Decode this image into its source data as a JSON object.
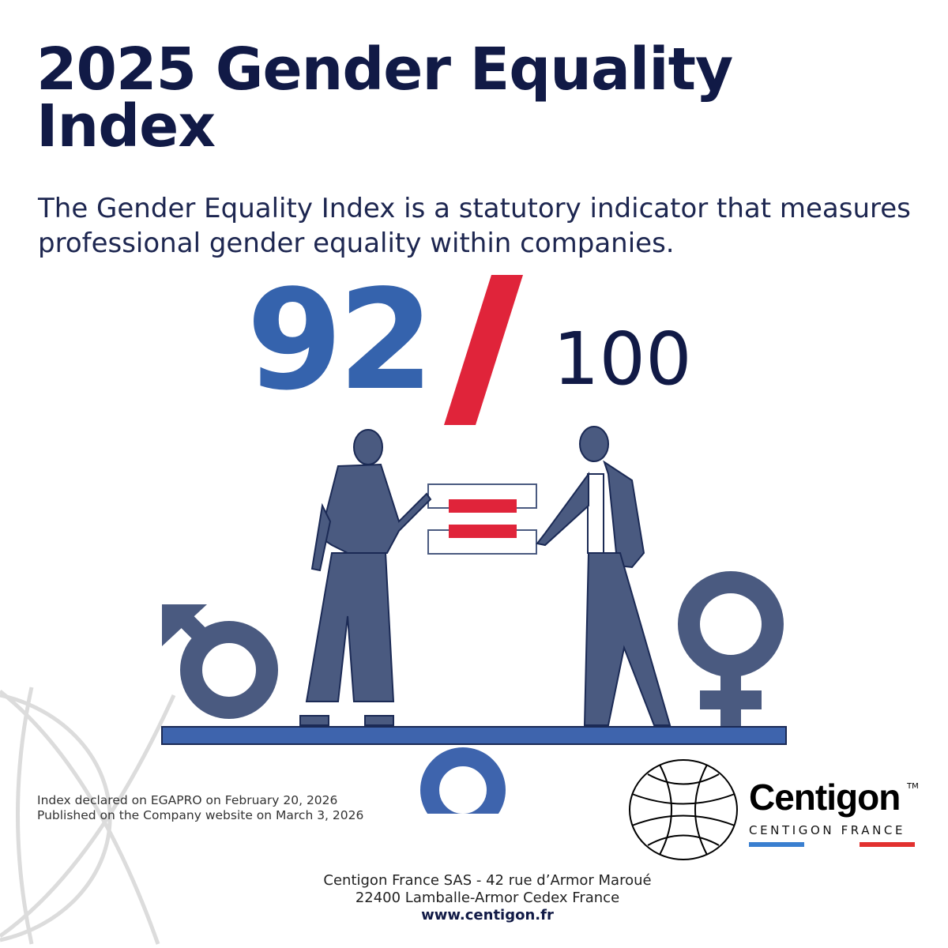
{
  "header": {
    "title": "2025 Gender Equality Index",
    "subtitle": "The Gender Equality Index is a statutory indicator that measures professional gender equality within companies."
  },
  "score": {
    "value": "92",
    "separator": "/",
    "max": "100"
  },
  "illustration": {
    "icons": [
      "male-symbol-icon",
      "female-symbol-icon",
      "equals-icon",
      "seesaw-icon"
    ]
  },
  "declaration": {
    "line1": "Index declared on EGAPRO on February 20, 2026",
    "line2": "Published on the Company website on March 3, 2026"
  },
  "logo": {
    "name": "Centigon",
    "tm": "TM",
    "subtitle": "CENTIGON FRANCE"
  },
  "footer": {
    "address1": "Centigon France SAS - 42 rue d’Armor Maroué",
    "address2": "22400 Lamballe-Armor Cedex France",
    "website": "www.centigon.fr"
  },
  "colors": {
    "navy": "#111a46",
    "blue": "#3563ad",
    "red": "#e0243a",
    "figure": "#4a5a80"
  }
}
